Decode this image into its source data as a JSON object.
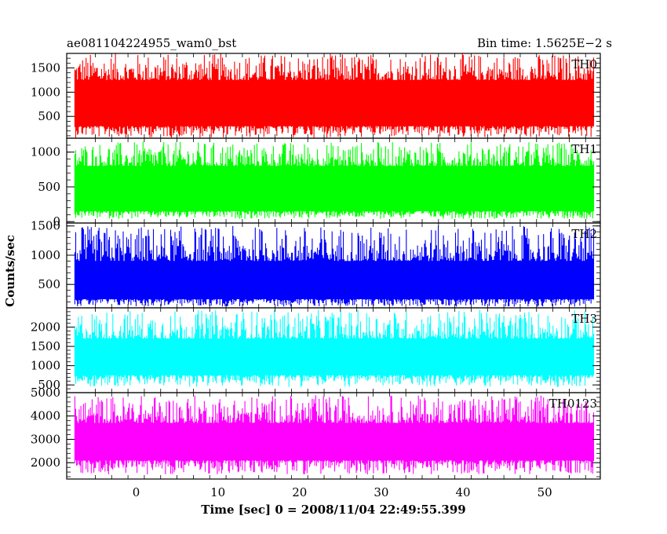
{
  "header": {
    "title": "ae081104224955_wam0_bst",
    "bin_time": "Bin time: 1.5625E−2 s"
  },
  "chart_data": {
    "type": "line",
    "xlabel": "Time [sec] 0 = 2008/11/04 22:49:55.399",
    "ylabel": "Counts/sec",
    "xlim": [
      -8.5,
      56.8
    ],
    "data_xrange": [
      -7.5,
      56
    ],
    "x_ticks": [
      0,
      10,
      20,
      30,
      40,
      50
    ],
    "x_tick_labels": [
      "0",
      "10",
      "20",
      "30",
      "40",
      "50"
    ],
    "panels": [
      {
        "name": "TH0",
        "color": "#ff0000",
        "ylim": [
          50,
          1800
        ],
        "y_ticks": [
          500,
          1000,
          1500
        ],
        "y_tick_labels": [
          "500",
          "1000",
          "1500"
        ],
        "band": [
          300,
          1250
        ],
        "extreme": [
          60,
          1800
        ]
      },
      {
        "name": "TH1",
        "color": "#00ff00",
        "ylim": [
          -20,
          1200
        ],
        "y_ticks": [
          0,
          500,
          1000
        ],
        "y_tick_labels": [
          "0",
          "500",
          "1000"
        ],
        "band": [
          150,
          800
        ],
        "extreme": [
          40,
          1150
        ]
      },
      {
        "name": "TH2",
        "color": "#0000ff",
        "ylim": [
          100,
          1550
        ],
        "y_ticks": [
          500,
          1000,
          1500
        ],
        "y_tick_labels": [
          "500",
          "1000",
          "1500"
        ],
        "band": [
          250,
          900
        ],
        "extreme": [
          120,
          1500
        ]
      },
      {
        "name": "TH3",
        "color": "#00ffff",
        "ylim": [
          300,
          2500
        ],
        "y_ticks": [
          500,
          1000,
          1500,
          2000
        ],
        "y_tick_labels": [
          "500",
          "1000",
          "1500",
          "2000"
        ],
        "band": [
          750,
          1700
        ],
        "extreme": [
          450,
          2450
        ]
      },
      {
        "name": "TH0123",
        "color": "#ff00ff",
        "ylim": [
          1300,
          5000
        ],
        "y_ticks": [
          2000,
          3000,
          4000,
          5000
        ],
        "y_tick_labels": [
          "2000",
          "3000",
          "4000",
          "5000"
        ],
        "band": [
          2100,
          3700
        ],
        "extreme": [
          1500,
          4900
        ]
      }
    ]
  }
}
